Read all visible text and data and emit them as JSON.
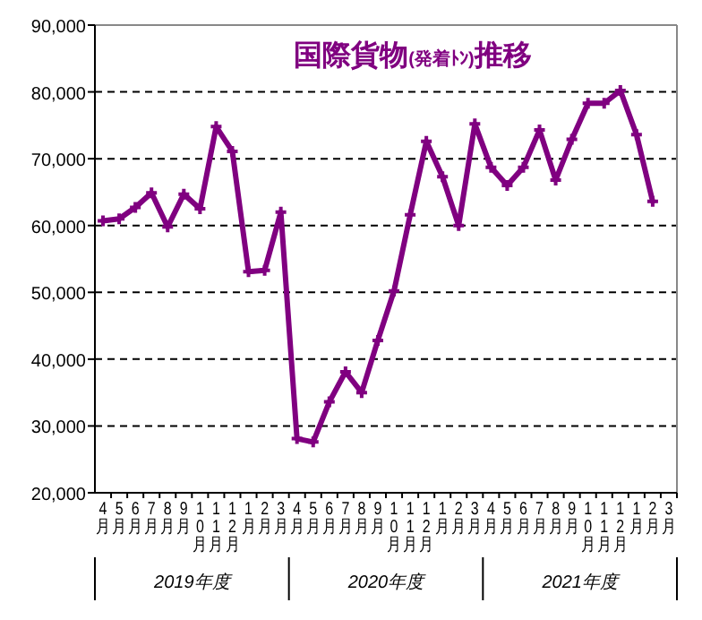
{
  "chart_data": {
    "type": "line",
    "title": "国際貨物(発着ﾄﾝ)推移",
    "categories": [
      "4月",
      "5月",
      "6月",
      "7月",
      "8月",
      "9月",
      "10月",
      "11月",
      "12月",
      "1月",
      "2月",
      "3月",
      "4月",
      "5月",
      "6月",
      "7月",
      "8月",
      "9月",
      "10月",
      "11月",
      "12月",
      "1月",
      "2月",
      "3月",
      "4月",
      "5月",
      "6月",
      "7月",
      "8月",
      "9月",
      "10月",
      "11月",
      "12月",
      "1月",
      "2月",
      "3月"
    ],
    "series": [
      {
        "color": "#800080",
        "values": [
          60700,
          61000,
          62700,
          64900,
          59800,
          64700,
          62500,
          74800,
          71100,
          53100,
          53300,
          62000,
          28100,
          27600,
          33600,
          38100,
          35000,
          42800,
          50200,
          61600,
          72600,
          67300,
          60000,
          75200,
          68700,
          66000,
          68700,
          74300,
          66800,
          72900,
          78300,
          78300,
          80200,
          73600,
          63600,
          null
        ]
      }
    ],
    "annotations": [
      "2019年度",
      "2020年度",
      "2021年度"
    ],
    "ylim": [
      20000,
      90000
    ],
    "yticks": [
      {
        "value": 20000,
        "label": "20,000"
      },
      {
        "value": 30000,
        "label": "30,000"
      },
      {
        "value": 40000,
        "label": "40,000"
      },
      {
        "value": 50000,
        "label": "50,000"
      },
      {
        "value": 60000,
        "label": "60,000"
      },
      {
        "value": 70000,
        "label": "70,000"
      },
      {
        "value": 80000,
        "label": "80,000"
      },
      {
        "value": 90000,
        "label": "90,000"
      }
    ],
    "grid": "y",
    "marker": "cross",
    "line_style": "solid"
  }
}
